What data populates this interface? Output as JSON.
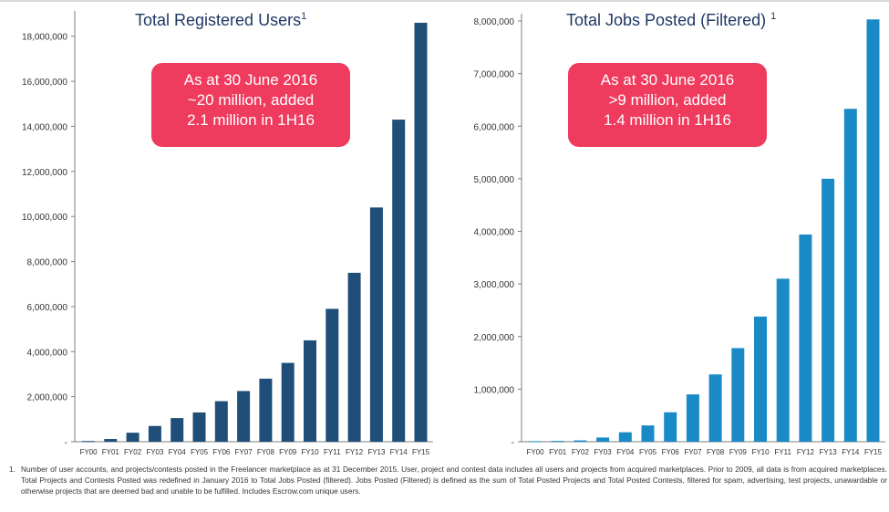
{
  "left": {
    "title": "Total Registered Users",
    "title_sup": "1",
    "callout": [
      "As at 30 June 2016",
      "~20 million, added",
      "2.1 million in 1H16"
    ]
  },
  "right": {
    "title": "Total Jobs Posted (Filtered)",
    "title_sup": "1",
    "callout": [
      "As at 30 June 2016",
      ">9 million, added",
      "1.4 million in 1H16"
    ]
  },
  "footnote": {
    "number": "1.",
    "text": "Number of user accounts, and projects/contests posted in the Freelancer marketplace as at 31 December 2015. User, project and contest data includes all users and projects from acquired marketplaces. Prior to 2009, all data is from acquired marketplaces. Total Projects and Contests Posted was redefined in January 2016 to Total Jobs Posted (filtered). Jobs Posted (Filtered) is defined as the sum of Total Posted Projects and Total Posted Contests, filtered for spam, advertising, test projects, unawardable or otherwise projects that are deemed bad and unable to be fulfilled. Includes Escrow.com unique users."
  },
  "colors": {
    "left_bar": "#1f4e79",
    "right_bar": "#1a8ac6",
    "callout": "#ef3b5d",
    "title": "#1f3864"
  },
  "chart_data": [
    {
      "type": "bar",
      "title": "Total Registered Users",
      "categories": [
        "FY00",
        "FY01",
        "FY02",
        "FY03",
        "FY04",
        "FY05",
        "FY06",
        "FY07",
        "FY08",
        "FY09",
        "FY10",
        "FY11",
        "FY12",
        "FY13",
        "FY14",
        "FY15"
      ],
      "values": [
        30000,
        120000,
        400000,
        700000,
        1050000,
        1300000,
        1800000,
        2250000,
        2800000,
        3500000,
        4500000,
        5900000,
        7500000,
        10400000,
        14300000,
        18600000
      ],
      "yticks": [
        0,
        2000000,
        4000000,
        6000000,
        8000000,
        10000000,
        12000000,
        14000000,
        16000000,
        18000000
      ],
      "ytick_labels": [
        "-",
        "2,000,000",
        "4,000,000",
        "6,000,000",
        "8,000,000",
        "10,000,000",
        "12,000,000",
        "14,000,000",
        "16,000,000",
        "18,000,000"
      ],
      "ylim": [
        0,
        18800000
      ],
      "grid": false
    },
    {
      "type": "bar",
      "title": "Total Jobs Posted (Filtered)",
      "categories": [
        "FY00",
        "FY01",
        "FY02",
        "FY03",
        "FY04",
        "FY05",
        "FY06",
        "FY07",
        "FY08",
        "FY09",
        "FY10",
        "FY11",
        "FY12",
        "FY13",
        "FY14",
        "FY15"
      ],
      "values": [
        10000,
        15000,
        25000,
        80000,
        180000,
        310000,
        560000,
        900000,
        1280000,
        1780000,
        2380000,
        3100000,
        3940000,
        5000000,
        6330000,
        8030000
      ],
      "yticks": [
        0,
        1000000,
        2000000,
        3000000,
        4000000,
        5000000,
        6000000,
        7000000,
        8000000
      ],
      "ytick_labels": [
        "-",
        "1,000,000",
        "2,000,000",
        "3,000,000",
        "4,000,000",
        "5,000,000",
        "6,000,000",
        "7,000,000",
        "8,000,000"
      ],
      "ylim": [
        0,
        8000000
      ],
      "grid": false
    }
  ]
}
